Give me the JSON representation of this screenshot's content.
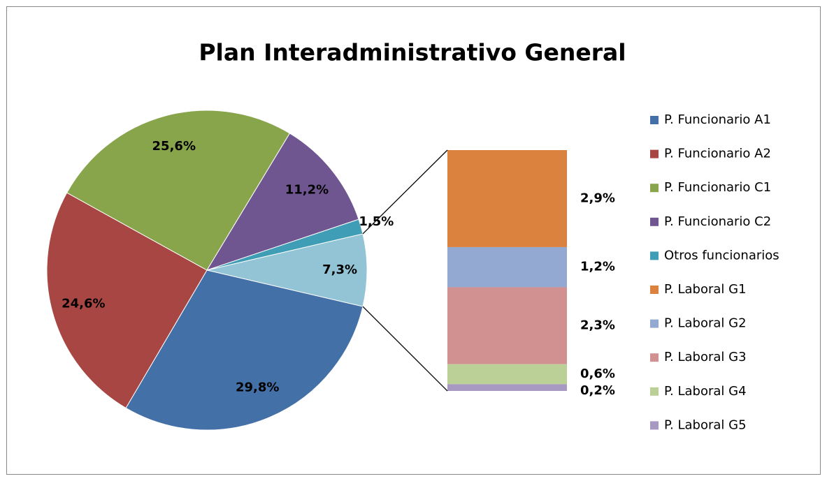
{
  "chart_data": {
    "type": "bar-of-pie",
    "title": "Plan Interadministrativo General",
    "pie": {
      "categories": [
        "P. Funcionario A1",
        "P. Funcionario A2",
        "P. Funcionario C1",
        "P. Funcionario C2",
        "Otros funcionarios"
      ],
      "values": [
        29.8,
        24.6,
        25.6,
        11.2,
        1.5
      ],
      "value_labels": [
        "29,8%",
        "24,6%",
        "25,6%",
        "11,2%",
        "1,5%"
      ],
      "colors": [
        "#4470a8",
        "#a84643",
        "#88a54c",
        "#705690",
        "#3f9db5"
      ]
    },
    "pie_other": {
      "value": 7.3,
      "value_label": "7,3%",
      "color": "#93c4d6"
    },
    "bar": {
      "categories": [
        "P. Laboral G1",
        "P. Laboral G2",
        "P. Laboral G3",
        "P. Laboral G4",
        "P. Laboral G5"
      ],
      "values": [
        2.9,
        1.2,
        2.3,
        0.6,
        0.2
      ],
      "value_labels": [
        "2,9%",
        "1,2%",
        "2,3%",
        "0,6%",
        "0,2%"
      ],
      "colors": [
        "#db833e",
        "#94a9d1",
        "#d29191",
        "#bbd097",
        "#a899c3"
      ]
    },
    "legend": "right"
  }
}
